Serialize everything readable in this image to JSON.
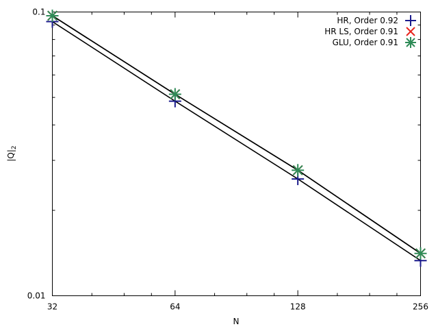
{
  "chart_data": {
    "type": "line",
    "title": "",
    "xlabel": "N",
    "ylabel_main": "|Q|",
    "ylabel_sub": "2",
    "x_scale": "log2",
    "y_scale": "log10",
    "xlim": [
      32,
      256
    ],
    "ylim": [
      0.01,
      0.1
    ],
    "x_ticks": [
      32,
      64,
      128,
      256
    ],
    "x_tick_labels": [
      "32",
      "64",
      "128",
      "256"
    ],
    "y_tick_labels": [
      "0.1",
      "0.01"
    ],
    "grid": false,
    "legend_position": "top-right",
    "series": [
      {
        "name": "HR, Order 0.92",
        "marker": "plus",
        "color": "#1a1a8c",
        "x": [
          32,
          64,
          128,
          256
        ],
        "y": [
          0.0925,
          0.0485,
          0.0258,
          0.0133
        ]
      },
      {
        "name": "HR LS, Order 0.91",
        "marker": "x",
        "color": "#e8261e",
        "x": [
          32,
          64,
          128,
          256
        ],
        "y": [
          0.097,
          0.0513,
          0.0277,
          0.0141
        ]
      },
      {
        "name": "GLU, Order 0.91",
        "marker": "star",
        "color": "#2e8b57",
        "x": [
          32,
          64,
          128,
          256
        ],
        "y": [
          0.097,
          0.0513,
          0.0277,
          0.0141
        ]
      }
    ]
  }
}
